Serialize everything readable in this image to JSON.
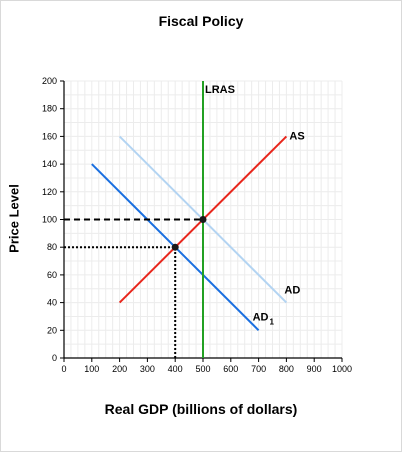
{
  "chart_data": {
    "type": "line",
    "title": "Fiscal Policy",
    "xlabel": "Real GDP (billions of dollars)",
    "ylabel": "Price Level",
    "xlim": [
      0,
      1000
    ],
    "ylim": [
      0,
      200
    ],
    "x_ticks": [
      0,
      100,
      200,
      300,
      400,
      500,
      600,
      700,
      800,
      900,
      1000
    ],
    "y_ticks": [
      0,
      20,
      40,
      60,
      80,
      100,
      120,
      140,
      160,
      180,
      200
    ],
    "grid": true,
    "series": [
      {
        "name": "AS",
        "label_sub": "",
        "color": "#e8261c",
        "x": [
          200,
          800
        ],
        "y": [
          40,
          160
        ]
      },
      {
        "name": "AD",
        "label_sub": "",
        "color": "#b3d4f2",
        "x": [
          200,
          800
        ],
        "y": [
          160,
          40
        ]
      },
      {
        "name": "AD",
        "label_sub": "1",
        "color": "#1a6fe0",
        "x": [
          100,
          700
        ],
        "y": [
          140,
          20
        ]
      },
      {
        "name": "LRAS",
        "label_sub": "",
        "color": "#22a022",
        "x": [
          500,
          500
        ],
        "y": [
          0,
          200
        ]
      }
    ],
    "points": [
      {
        "x": 500,
        "y": 100
      },
      {
        "x": 400,
        "y": 80
      }
    ],
    "guides": [
      {
        "style": "dashed",
        "x": [
          0,
          500
        ],
        "y": [
          100,
          100
        ]
      },
      {
        "style": "dotted",
        "x": [
          0,
          400
        ],
        "y": [
          80,
          80
        ]
      },
      {
        "style": "dotted",
        "x": [
          400,
          400
        ],
        "y": [
          0,
          80
        ]
      }
    ]
  }
}
